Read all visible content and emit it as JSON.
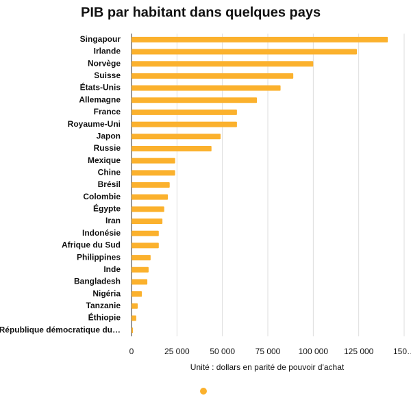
{
  "chart_data": {
    "type": "bar",
    "orientation": "horizontal",
    "title": "PIB par habitant dans quelques pays",
    "x_label": "Unité : dollars en parité de pouvoir d'achat",
    "categories": [
      "Singapour",
      "Irlande",
      "Norvège",
      "Suisse",
      "États-Unis",
      "Allemagne",
      "France",
      "Royaume-Uni",
      "Japon",
      "Russie",
      "Mexique",
      "Chine",
      "Brésil",
      "Colombie",
      "Égypte",
      "Iran",
      "Indonésie",
      "Afrique du Sud",
      "Philippines",
      "Inde",
      "Bangladesh",
      "Nigéria",
      "Tanzanie",
      "Éthiopie",
      "République démocratique du…"
    ],
    "values": [
      141000,
      124000,
      100000,
      89000,
      82000,
      69000,
      58000,
      58000,
      49000,
      44000,
      24000,
      24000,
      21000,
      20000,
      18000,
      17000,
      15000,
      15000,
      10500,
      9400,
      8700,
      5700,
      3400,
      2600,
      800
    ],
    "color": "#fbb12d",
    "xlim": [
      0,
      150000
    ],
    "xticks": [
      0,
      {
        "value": 25000,
        "label": "25 000"
      },
      {
        "value": 50000,
        "label": "50 000"
      },
      {
        "value": 75000,
        "label": "75 000"
      },
      {
        "value": 100000,
        "label": "100 000"
      },
      {
        "value": 125000,
        "label": "125 000"
      },
      {
        "value": 150000,
        "label": "150…"
      }
    ],
    "grid": true
  }
}
